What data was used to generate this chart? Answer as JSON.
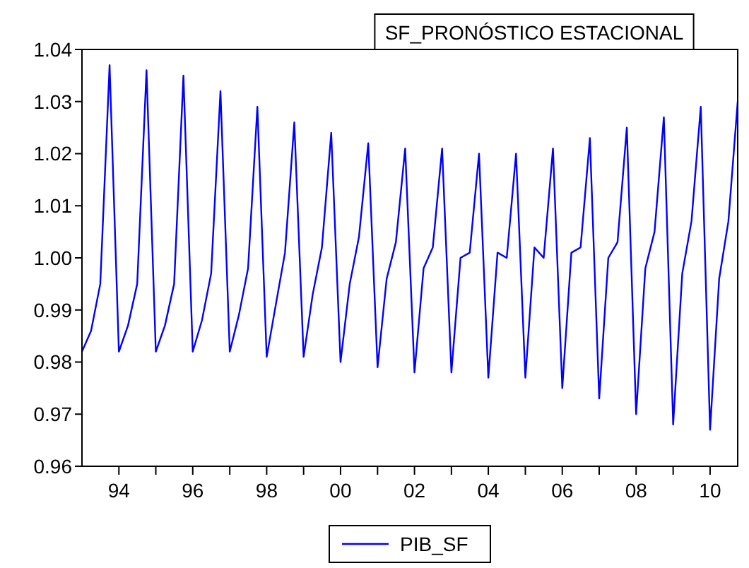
{
  "chart_data": {
    "type": "line",
    "title": "SF_PRONÓSTICO ESTACIONAL",
    "x": [
      "1993-01",
      "1993-04",
      "1993-07",
      "1993-10",
      "1994-01",
      "1994-04",
      "1994-07",
      "1994-10",
      "1995-01",
      "1995-04",
      "1995-07",
      "1995-10",
      "1996-01",
      "1996-04",
      "1996-07",
      "1996-10",
      "1997-01",
      "1997-04",
      "1997-07",
      "1997-10",
      "1998-01",
      "1998-04",
      "1998-07",
      "1998-10",
      "1999-01",
      "1999-04",
      "1999-07",
      "1999-10",
      "2000-01",
      "2000-04",
      "2000-07",
      "2000-10",
      "2001-01",
      "2001-04",
      "2001-07",
      "2001-10",
      "2002-01",
      "2002-04",
      "2002-07",
      "2002-10",
      "2003-01",
      "2003-04",
      "2003-07",
      "2003-10",
      "2004-01",
      "2004-04",
      "2004-07",
      "2004-10",
      "2005-01",
      "2005-04",
      "2005-07",
      "2005-10",
      "2006-01",
      "2006-04",
      "2006-07",
      "2006-10",
      "2007-01",
      "2007-04",
      "2007-07",
      "2007-10",
      "2008-01",
      "2008-04",
      "2008-07",
      "2008-10",
      "2009-01",
      "2009-04",
      "2009-07",
      "2009-10",
      "2010-01",
      "2010-04",
      "2010-07",
      "2010-10"
    ],
    "series": [
      {
        "name": "PIB_SF",
        "color": "#0000ff",
        "values": [
          0.982,
          0.986,
          0.995,
          1.037,
          0.982,
          0.987,
          0.995,
          1.036,
          0.982,
          0.987,
          0.995,
          1.035,
          0.982,
          0.988,
          0.997,
          1.032,
          0.982,
          0.989,
          0.998,
          1.029,
          0.981,
          0.991,
          1.001,
          1.026,
          0.981,
          0.993,
          1.002,
          1.024,
          0.98,
          0.995,
          1.004,
          1.022,
          0.979,
          0.996,
          1.003,
          1.021,
          0.978,
          0.998,
          1.002,
          1.021,
          0.978,
          1.0,
          1.001,
          1.02,
          0.977,
          1.001,
          1.0,
          1.02,
          0.977,
          1.002,
          1.0,
          1.021,
          0.975,
          1.001,
          1.002,
          1.023,
          0.973,
          1.0,
          1.003,
          1.025,
          0.97,
          0.998,
          1.005,
          1.027,
          0.968,
          0.997,
          1.007,
          1.029,
          0.967,
          0.996,
          1.007,
          1.03
        ]
      }
    ],
    "xlim": [
      "1993-01",
      "2010-10"
    ],
    "xticks": [
      {
        "value": "1994-01",
        "label": "94"
      },
      {
        "value": "1995-01",
        "label": null
      },
      {
        "value": "1996-01",
        "label": "96"
      },
      {
        "value": "1997-01",
        "label": null
      },
      {
        "value": "1998-01",
        "label": "98"
      },
      {
        "value": "1999-01",
        "label": null
      },
      {
        "value": "2000-01",
        "label": "00"
      },
      {
        "value": "2001-01",
        "label": null
      },
      {
        "value": "2002-01",
        "label": "02"
      },
      {
        "value": "2003-01",
        "label": null
      },
      {
        "value": "2004-01",
        "label": "04"
      },
      {
        "value": "2005-01",
        "label": null
      },
      {
        "value": "2006-01",
        "label": "06"
      },
      {
        "value": "2007-01",
        "label": null
      },
      {
        "value": "2008-01",
        "label": "08"
      },
      {
        "value": "2009-01",
        "label": null
      },
      {
        "value": "2010-01",
        "label": "10"
      }
    ],
    "ylim": [
      0.96,
      1.04
    ],
    "yticks": [
      {
        "value": 0.96,
        "label": "0.96"
      },
      {
        "value": 0.97,
        "label": "0.97"
      },
      {
        "value": 0.98,
        "label": "0.98"
      },
      {
        "value": 0.99,
        "label": "0.99"
      },
      {
        "value": 1.0,
        "label": "1.00"
      },
      {
        "value": 1.01,
        "label": "1.01"
      },
      {
        "value": 1.02,
        "label": "1.02"
      },
      {
        "value": 1.03,
        "label": "1.03"
      },
      {
        "value": 1.04,
        "label": "1.04"
      }
    ],
    "grid": false,
    "legend": "bottom",
    "marker": "none",
    "line_style": "solid"
  }
}
